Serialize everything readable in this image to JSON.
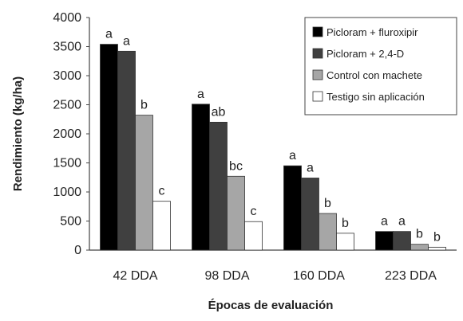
{
  "chart_data": {
    "type": "bar",
    "xlabel": "Épocas de evaluación",
    "ylabel": "Rendimiento (kg/ha)",
    "ylim": [
      0,
      4000
    ],
    "yticks": [
      0,
      500,
      1000,
      1500,
      2000,
      2500,
      3000,
      3500,
      4000
    ],
    "categories": [
      "42 DDA",
      "98 DDA",
      "160 DDA",
      "223 DDA"
    ],
    "legend_position": "top-right",
    "grid": false,
    "series": [
      {
        "name": "Picloram + fluroxipir",
        "color": "#000000",
        "values": [
          3540,
          2510,
          1450,
          320
        ],
        "labels": [
          "a",
          "a",
          "a",
          "a"
        ]
      },
      {
        "name": "Picloram + 2,4-D",
        "color": "#404040",
        "values": [
          3420,
          2200,
          1240,
          320
        ],
        "labels": [
          "a",
          "ab",
          "a",
          "a"
        ]
      },
      {
        "name": "Control con machete",
        "color": "#a6a6a6",
        "values": [
          2320,
          1270,
          630,
          100
        ],
        "labels": [
          "b",
          "bc",
          "b",
          "b"
        ]
      },
      {
        "name": "Testigo sin aplicación",
        "color": "#ffffff",
        "values": [
          840,
          490,
          290,
          50
        ],
        "labels": [
          "c",
          "c",
          "b",
          "b"
        ]
      }
    ]
  }
}
